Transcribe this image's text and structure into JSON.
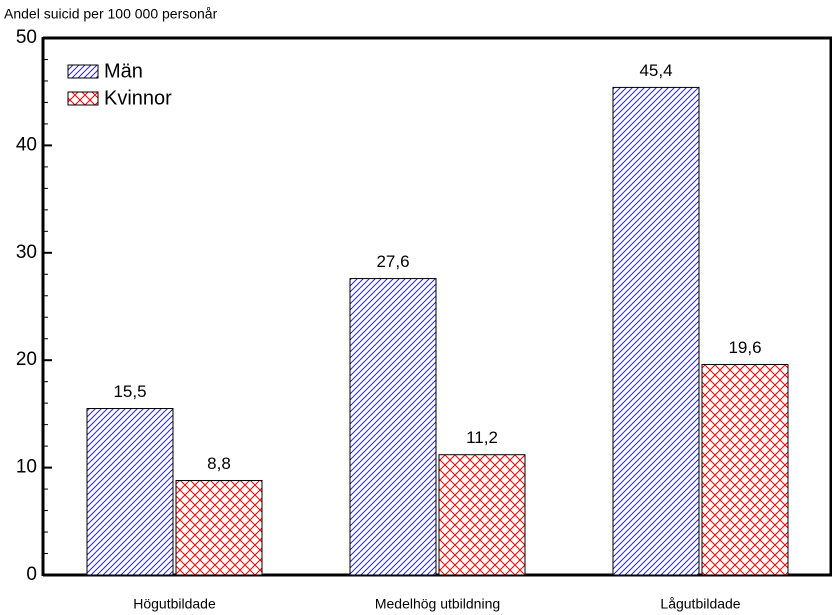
{
  "chart_data": {
    "type": "bar",
    "title": "Andel suicid per 100 000 personår",
    "categories": [
      "Högutbildade",
      "Medelhög utbildning",
      "Lågutbildade"
    ],
    "series": [
      {
        "name": "Män",
        "color": "#2b2bc8",
        "pattern": "hatch",
        "values": [
          15.5,
          27.6,
          45.4
        ],
        "value_labels": [
          "15,5",
          "27,6",
          "45,4"
        ]
      },
      {
        "name": "Kvinnor",
        "color": "#ff0000",
        "pattern": "crosshatch",
        "values": [
          8.8,
          11.2,
          19.6
        ],
        "value_labels": [
          "8,8",
          "11,2",
          "19,6"
        ]
      }
    ],
    "ylim": [
      0,
      50
    ],
    "yticks": [
      0,
      10,
      20,
      30,
      40,
      50
    ],
    "yminor_ticks": [
      2,
      4,
      6,
      8,
      12,
      14,
      16,
      18,
      22,
      24,
      26,
      28,
      32,
      34,
      36,
      38,
      42,
      44,
      46,
      48
    ],
    "legend": "top-left",
    "grid": false
  }
}
